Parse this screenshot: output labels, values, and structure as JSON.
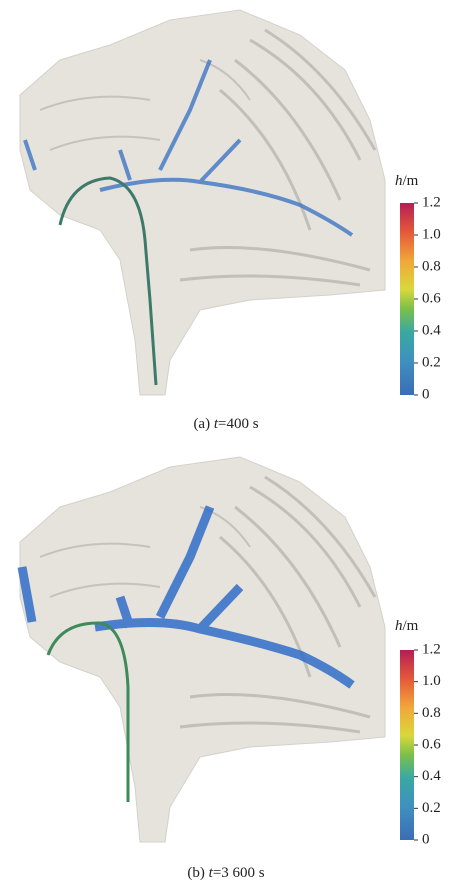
{
  "panels": [
    {
      "caption": {
        "label": "(a)",
        "var": "t",
        "value": "=400 s"
      },
      "colorbar": {
        "var": "h",
        "unit": "/m",
        "ticks": [
          "1.2",
          "1.0",
          "0.8",
          "0.6",
          "0.4",
          "0.2",
          "0"
        ]
      }
    },
    {
      "caption": {
        "label": "(b)",
        "var": "t",
        "value": "=3 600 s"
      },
      "colorbar": {
        "var": "h",
        "unit": "/m",
        "ticks": [
          "1.2",
          "1.0",
          "0.8",
          "0.6",
          "0.4",
          "0.2",
          "0"
        ]
      }
    }
  ]
}
